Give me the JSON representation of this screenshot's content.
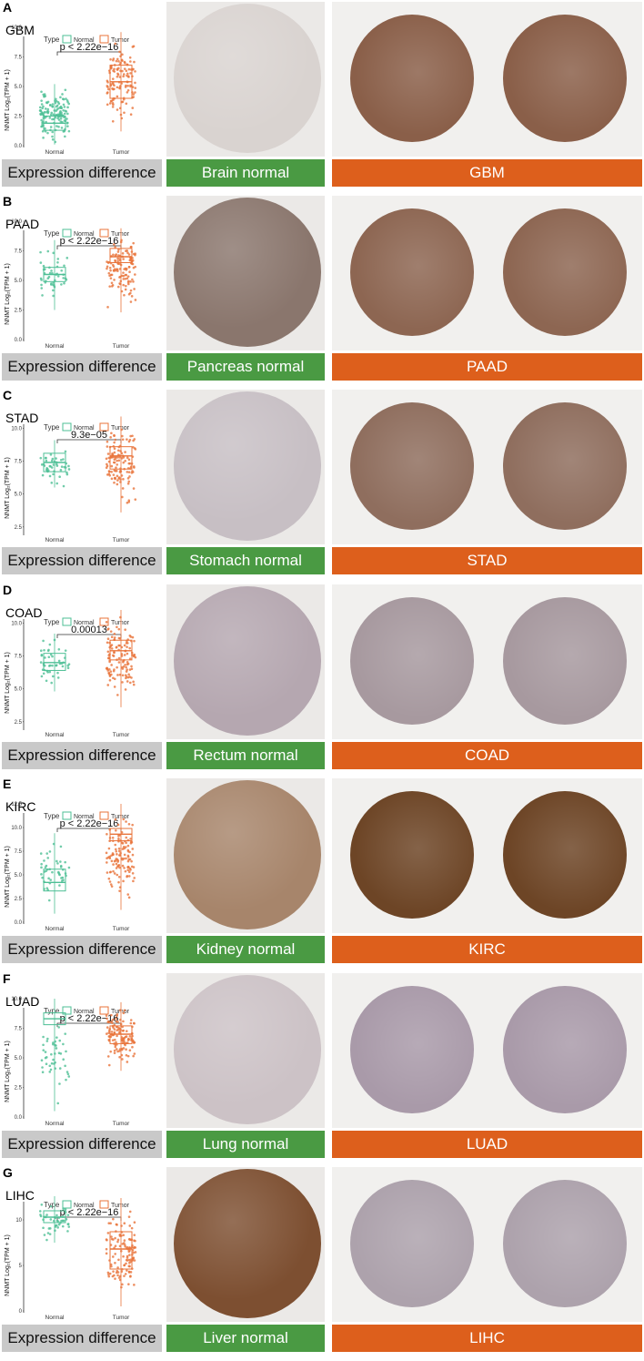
{
  "figure": {
    "type_label": "Type",
    "legend": {
      "normal": "Normal",
      "tumor": "Tumor"
    },
    "ylabel": "NNMT Log₂(TPM + 1)",
    "left_label": "Expression difference",
    "colors": {
      "normal": "#4dbf95",
      "tumor": "#e8733a",
      "green": "#4a9a43",
      "orange": "#dd5f1c"
    }
  },
  "panels": [
    {
      "letter": "A",
      "name": "GBM",
      "pvalue": "p < 2.22e−16",
      "normal_label": "Brain normal",
      "tumor_label": "GBM",
      "chart_data": {
        "type": "box",
        "categories": [
          "Normal",
          "Tumor"
        ],
        "ylim": [
          0,
          10
        ],
        "yticks": [
          "0.0",
          "2.5",
          "5.0",
          "7.5",
          "10.0"
        ],
        "series": [
          {
            "name": "Normal",
            "q1": 1.3,
            "median": 1.9,
            "q3": 2.5,
            "min": 0.1,
            "max": 5.2
          },
          {
            "name": "Tumor",
            "q1": 4.0,
            "median": 5.4,
            "q3": 6.8,
            "min": 1.2,
            "max": 9.6
          }
        ]
      },
      "tissue": {
        "normal": "#d9d3d0",
        "tumor": "#8a5f49"
      }
    },
    {
      "letter": "B",
      "name": "PAAD",
      "pvalue": "p < 2.22e−16",
      "normal_label": "Pancreas normal",
      "tumor_label": "PAAD",
      "chart_data": {
        "type": "box",
        "categories": [
          "Normal",
          "Tumor"
        ],
        "ylim": [
          0,
          10
        ],
        "yticks": [
          "0.0",
          "2.5",
          "5.0",
          "7.5",
          "10.0"
        ],
        "series": [
          {
            "name": "Normal",
            "q1": 4.9,
            "median": 5.5,
            "q3": 6.1,
            "min": 2.5,
            "max": 8.4
          },
          {
            "name": "Tumor",
            "q1": 6.5,
            "median": 7.0,
            "q3": 7.7,
            "min": 2.3,
            "max": 9.4
          }
        ]
      },
      "tissue": {
        "normal": "#8a766d",
        "tumor": "#8d6652"
      }
    },
    {
      "letter": "C",
      "name": "STAD",
      "pvalue": "9.3e−05",
      "normal_label": "Stomach normal",
      "tumor_label": "STAD",
      "chart_data": {
        "type": "box",
        "categories": [
          "Normal",
          "Tumor"
        ],
        "ylim": [
          2.0,
          11.0
        ],
        "yticks": [
          "2.5",
          "5.0",
          "7.5",
          "10.0"
        ],
        "series": [
          {
            "name": "Normal",
            "q1": 6.7,
            "median": 7.4,
            "q3": 8.1,
            "min": 5.5,
            "max": 9.1
          },
          {
            "name": "Tumor",
            "q1": 6.9,
            "median": 7.9,
            "q3": 8.6,
            "min": 3.6,
            "max": 10.9
          }
        ]
      },
      "tissue": {
        "normal": "#c7bfc4",
        "tumor": "#8f6e5e"
      }
    },
    {
      "letter": "D",
      "name": "COAD",
      "pvalue": "0.00013",
      "normal_label": "Rectum normal",
      "tumor_label": "COAD",
      "chart_data": {
        "type": "box",
        "categories": [
          "Normal",
          "Tumor"
        ],
        "ylim": [
          2.0,
          11.0
        ],
        "yticks": [
          "2.5",
          "5.0",
          "7.5",
          "10.0"
        ],
        "series": [
          {
            "name": "Normal",
            "q1": 6.4,
            "median": 7.0,
            "q3": 7.7,
            "min": 4.8,
            "max": 9.2
          },
          {
            "name": "Tumor",
            "q1": 7.2,
            "median": 7.9,
            "q3": 8.7,
            "min": 3.6,
            "max": 11.0
          }
        ]
      },
      "tissue": {
        "normal": "#b5a7b0",
        "tumor": "#a7999f"
      }
    },
    {
      "letter": "E",
      "name": "KIRC",
      "pvalue": "p < 2.22e−16",
      "normal_label": "Kidney normal",
      "tumor_label": "KIRC",
      "chart_data": {
        "type": "box",
        "categories": [
          "Normal",
          "Tumor"
        ],
        "ylim": [
          0,
          12.5
        ],
        "yticks": [
          "0.0",
          "2.5",
          "5.0",
          "7.5",
          "10.0",
          "12.5"
        ],
        "series": [
          {
            "name": "Normal",
            "q1": 3.3,
            "median": 4.2,
            "q3": 5.6,
            "min": 0.9,
            "max": 9.4
          },
          {
            "name": "Tumor",
            "q1": 8.6,
            "median": 9.3,
            "q3": 9.9,
            "min": 1.3,
            "max": 12.5
          }
        ]
      },
      "tissue": {
        "normal": "#a7856b",
        "tumor": "#6d4526"
      }
    },
    {
      "letter": "F",
      "name": "LUAD",
      "pvalue": "p < 2.22e−16",
      "normal_label": "Lung normal",
      "tumor_label": "LUAD",
      "chart_data": {
        "type": "box",
        "categories": [
          "Normal",
          "Tumor"
        ],
        "ylim": [
          0,
          10
        ],
        "yticks": [
          "0.0",
          "2.5",
          "5.0",
          "7.5",
          "10.0"
        ],
        "series": [
          {
            "name": "Normal",
            "q1": 7.8,
            "median": 8.3,
            "q3": 8.8,
            "min": 0.5,
            "max": 10.0
          },
          {
            "name": "Tumor",
            "q1": 6.2,
            "median": 7.0,
            "q3": 7.7,
            "min": 3.9,
            "max": 9.7
          }
        ]
      },
      "tissue": {
        "normal": "#ccc2c6",
        "tumor": "#a99aa9"
      }
    },
    {
      "letter": "G",
      "name": "LIHC",
      "pvalue": "p < 2.22e−16",
      "normal_label": "Liver normal",
      "tumor_label": "LIHC",
      "chart_data": {
        "type": "box",
        "categories": [
          "Normal",
          "Tumor"
        ],
        "ylim": [
          0,
          13
        ],
        "yticks": [
          "0",
          "5",
          "10"
        ],
        "series": [
          {
            "name": "Normal",
            "q1": 9.7,
            "median": 10.3,
            "q3": 11.0,
            "min": 7.5,
            "max": 12.6
          },
          {
            "name": "Tumor",
            "q1": 4.6,
            "median": 6.8,
            "q3": 8.7,
            "min": 0.5,
            "max": 12.4
          }
        ]
      },
      "tissue": {
        "normal": "#7d4f31",
        "tumor": "#ada2ac"
      }
    }
  ]
}
